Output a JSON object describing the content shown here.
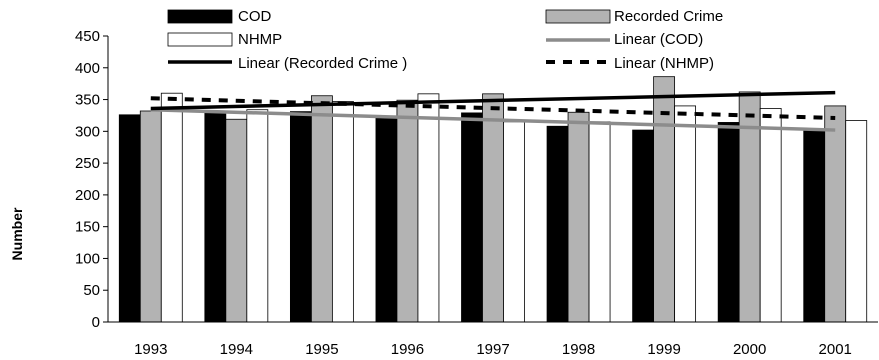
{
  "chart_data": {
    "type": "bar",
    "ylabel": "Number",
    "ylim": [
      0,
      450
    ],
    "yticks": [
      0,
      50,
      100,
      150,
      200,
      250,
      300,
      350,
      400,
      450
    ],
    "grid": false,
    "legend_position": "top",
    "categories": [
      "1993",
      "1994",
      "1995",
      "1996",
      "1997",
      "1998",
      "1999",
      "2000",
      "2001"
    ],
    "series": [
      {
        "name": "COD",
        "color": "#000000",
        "values": [
          326,
          330,
          331,
          321,
          329,
          308,
          302,
          314,
          302
        ]
      },
      {
        "name": "Recorded Crime",
        "color": "#b3b3b3",
        "values": [
          332,
          319,
          356,
          349,
          359,
          330,
          386,
          362,
          340
        ]
      },
      {
        "name": "NHMP",
        "color": "#ffffff",
        "values": [
          360,
          334,
          347,
          359,
          315,
          315,
          340,
          336,
          317
        ]
      }
    ],
    "trendlines": [
      {
        "name": "Linear (COD)",
        "color": "#8c8c8c",
        "style": "solid",
        "start": 334,
        "end": 302
      },
      {
        "name": "Linear (Recorded Crime )",
        "color": "#000000",
        "style": "solid",
        "start": 336,
        "end": 361
      },
      {
        "name": "Linear (NHMP)",
        "color": "#000000",
        "style": "dashed",
        "start": 352,
        "end": 321
      }
    ],
    "legend": [
      {
        "label": "COD",
        "kind": "bar",
        "color": "#000000"
      },
      {
        "label": "Recorded Crime",
        "kind": "bar",
        "color": "#b3b3b3"
      },
      {
        "label": "NHMP",
        "kind": "bar",
        "color": "#ffffff"
      },
      {
        "label": "Linear (COD)",
        "kind": "line",
        "color": "#8c8c8c",
        "style": "solid"
      },
      {
        "label": "Linear (Recorded Crime )",
        "kind": "line",
        "color": "#000000",
        "style": "solid"
      },
      {
        "label": "Linear (NHMP)",
        "kind": "line",
        "color": "#000000",
        "style": "dashed"
      }
    ]
  }
}
